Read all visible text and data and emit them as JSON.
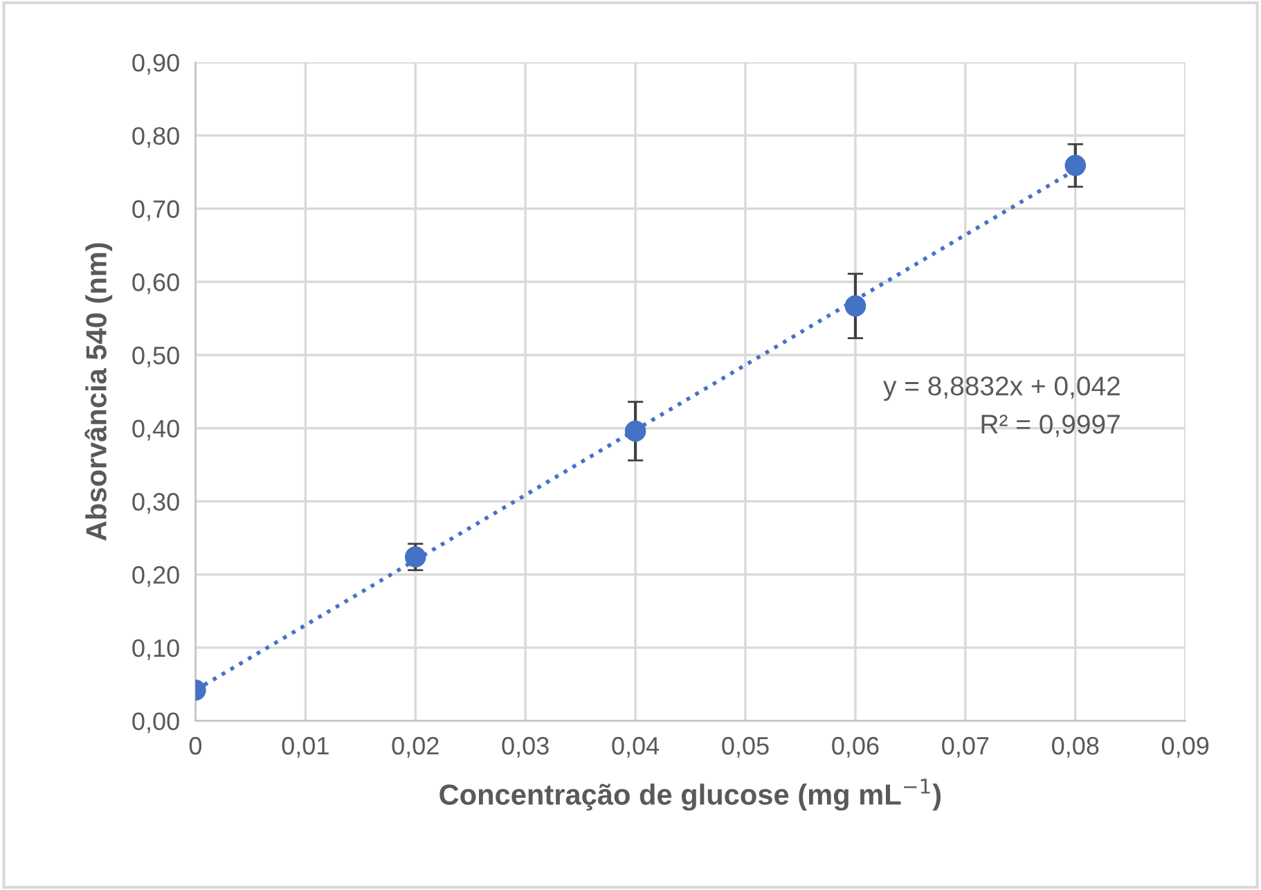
{
  "chart_data": {
    "type": "scatter",
    "xlabel": "Concentração de glucose (mg mL$^{−1}$)",
    "ylabel": "Absorvância 540 (nm)",
    "x": [
      0,
      0.02,
      0.04,
      0.06,
      0.08
    ],
    "series": [
      {
        "color": "#4472c4",
        "values": [
          0.042,
          0.224,
          0.396,
          0.567,
          0.759
        ],
        "errors": [
          null,
          0.018,
          0.04,
          0.044,
          0.029
        ],
        "marker": "circle"
      },
      {
        "type": "line",
        "color": "#4472c4",
        "x": [
          0,
          0.08
        ],
        "values": [
          0.042,
          0.753
        ],
        "line_style": "dotted",
        "marker": "none"
      }
    ],
    "annotations": [
      "y = 8,8832x + 0,042",
      "R² = 0,9997"
    ],
    "xlim": [
      0,
      0.09
    ],
    "ylim": [
      0,
      0.9
    ],
    "xticks": [
      {
        "value": 0,
        "label": "0"
      },
      {
        "value": 0.01,
        "label": "0,01"
      },
      {
        "value": 0.02,
        "label": "0,02"
      },
      {
        "value": 0.03,
        "label": "0,03"
      },
      {
        "value": 0.04,
        "label": "0,04"
      },
      {
        "value": 0.05,
        "label": "0,05"
      },
      {
        "value": 0.06,
        "label": "0,06"
      },
      {
        "value": 0.07,
        "label": "0,07"
      },
      {
        "value": 0.08,
        "label": "0,08"
      },
      {
        "value": 0.09,
        "label": "0,09"
      }
    ],
    "yticks": [
      {
        "value": 0,
        "label": "0,00"
      },
      {
        "value": 0.1,
        "label": "0,10"
      },
      {
        "value": 0.2,
        "label": "0,20"
      },
      {
        "value": 0.3,
        "label": "0,30"
      },
      {
        "value": 0.4,
        "label": "0,40"
      },
      {
        "value": 0.5,
        "label": "0,50"
      },
      {
        "value": 0.6,
        "label": "0,60"
      },
      {
        "value": 0.7,
        "label": "0,70"
      },
      {
        "value": 0.8,
        "label": "0,80"
      },
      {
        "value": 0.9,
        "label": "0,90"
      }
    ],
    "grid": true
  }
}
